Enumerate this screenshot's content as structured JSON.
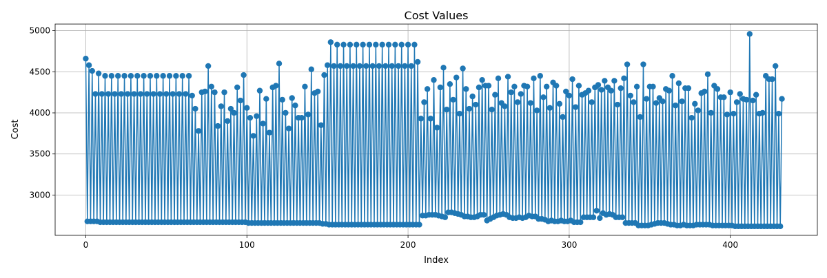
{
  "chart_data": {
    "type": "line",
    "title": "Cost Values",
    "xlabel": "Index",
    "ylabel": "Cost",
    "xlim": [
      -19,
      454
    ],
    "ylim": [
      2510,
      5080
    ],
    "xticks": [
      0,
      100,
      200,
      300,
      400
    ],
    "yticks": [
      3000,
      3500,
      4000,
      4500,
      5000
    ],
    "grid": true,
    "legend": "none",
    "line_color": "#1f77b4",
    "marker": "circle",
    "series": [
      {
        "values": [
          4660,
          2680,
          4580,
          2680,
          4510,
          2680,
          4230,
          2680,
          4480,
          2670,
          4230,
          2670,
          4450,
          2670,
          4230,
          2670,
          4450,
          2670,
          4230,
          2670,
          4450,
          2670,
          4230,
          2670,
          4450,
          2670,
          4230,
          2670,
          4450,
          2670,
          4230,
          2670,
          4450,
          2670,
          4230,
          2670,
          4450,
          2670,
          4230,
          2670,
          4450,
          2670,
          4230,
          2670,
          4450,
          2670,
          4230,
          2670,
          4450,
          2670,
          4230,
          2670,
          4450,
          2670,
          4230,
          2670,
          4450,
          2670,
          4230,
          2670,
          4450,
          2670,
          4230,
          2670,
          4450,
          2670,
          4210,
          2670,
          4050,
          2670,
          3780,
          2670,
          4250,
          2670,
          4260,
          2670,
          4570,
          2670,
          4320,
          2670,
          4250,
          2670,
          3840,
          2670,
          4080,
          2670,
          4250,
          2670,
          3900,
          2670,
          4050,
          2670,
          4000,
          2670,
          4310,
          2670,
          4150,
          2670,
          4460,
          2670,
          4060,
          2660,
          3940,
          2660,
          3720,
          2660,
          3960,
          2660,
          4270,
          2660,
          3870,
          2660,
          4170,
          2660,
          3760,
          2660,
          4310,
          2660,
          4330,
          2660,
          4600,
          2660,
          4160,
          2660,
          4000,
          2660,
          3810,
          2660,
          4180,
          2660,
          4090,
          2660,
          3940,
          2660,
          3940,
          2660,
          4320,
          2660,
          3980,
          2660,
          4530,
          2660,
          4240,
          2660,
          4260,
          2660,
          3850,
          2650,
          4460,
          2650,
          4580,
          2640,
          4860,
          2640,
          4570,
          2640,
          4830,
          2640,
          4570,
          2640,
          4830,
          2640,
          4570,
          2640,
          4830,
          2640,
          4570,
          2640,
          4830,
          2640,
          4570,
          2640,
          4830,
          2640,
          4570,
          2640,
          4830,
          2640,
          4570,
          2640,
          4830,
          2640,
          4570,
          2640,
          4830,
          2640,
          4570,
          2640,
          4830,
          2640,
          4570,
          2640,
          4830,
          2640,
          4570,
          2640,
          4830,
          2640,
          4570,
          2640,
          4830,
          2640,
          4570,
          2640,
          4830,
          2640,
          4620,
          2640,
          3930,
          2750,
          4130,
          2750,
          4290,
          2760,
          3930,
          2760,
          4400,
          2760,
          3820,
          2750,
          4310,
          2740,
          4550,
          2730,
          4040,
          2790,
          4350,
          2790,
          4160,
          2780,
          4430,
          2770,
          3990,
          2760,
          4540,
          2740,
          4290,
          2740,
          4050,
          2730,
          4200,
          2730,
          4100,
          2740,
          4310,
          2760,
          4400,
          2760,
          4330,
          2690,
          4330,
          2710,
          4040,
          2730,
          4220,
          2750,
          4420,
          2760,
          4120,
          2770,
          4080,
          2760,
          4440,
          2730,
          4250,
          2720,
          4320,
          2720,
          4130,
          2730,
          4230,
          2720,
          4330,
          2730,
          4320,
          2750,
          4120,
          2740,
          4420,
          2740,
          4030,
          2710,
          4450,
          2710,
          4190,
          2700,
          4320,
          2680,
          4060,
          2690,
          4370,
          2680,
          4330,
          2680,
          4110,
          2690,
          3950,
          2680,
          4260,
          2680,
          4210,
          2690,
          4410,
          2670,
          4070,
          2670,
          4330,
          2670,
          4220,
          2730,
          4240,
          2730,
          4270,
          2730,
          4130,
          2730,
          4310,
          2810,
          4340,
          2720,
          4280,
          2780,
          4390,
          2760,
          4310,
          2770,
          4270,
          2760,
          4390,
          2730,
          4100,
          2730,
          4300,
          2730,
          4420,
          2660,
          4590,
          2660,
          4210,
          2660,
          4130,
          2660,
          4320,
          2630,
          3950,
          2630,
          4590,
          2630,
          4170,
          2630,
          4320,
          2640,
          4320,
          2650,
          4120,
          2660,
          4180,
          2660,
          4140,
          2660,
          4290,
          2650,
          4270,
          2640,
          4450,
          2640,
          4090,
          2630,
          4360,
          2630,
          4140,
          2640,
          4300,
          2630,
          4300,
          2630,
          3940,
          2630,
          4110,
          2640,
          4030,
          2640,
          4240,
          2640,
          4260,
          2640,
          4470,
          2640,
          4000,
          2630,
          4330,
          2630,
          4290,
          2630,
          4190,
          2630,
          4190,
          2630,
          3980,
          2630,
          4250,
          2630,
          3990,
          2620,
          4130,
          2620,
          4230,
          2620,
          4170,
          2620,
          4160,
          2620,
          4960,
          2620,
          4150,
          2620,
          4220,
          2620,
          3990,
          2620,
          4000,
          2620,
          4450,
          2620,
          4410,
          2620,
          4410,
          2620,
          4570,
          2620,
          3990,
          2620,
          4170
        ]
      }
    ]
  }
}
